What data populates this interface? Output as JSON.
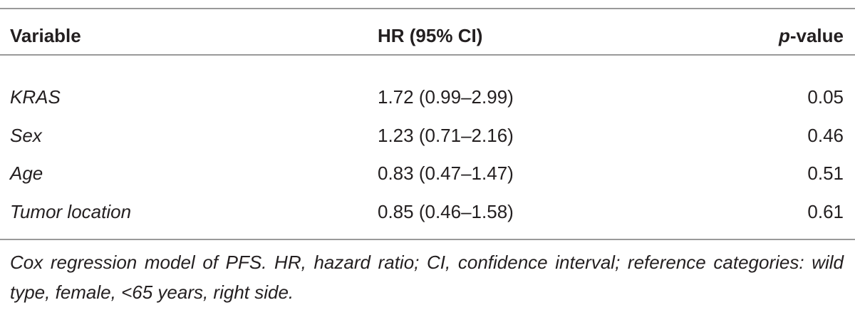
{
  "table": {
    "header": [
      "Variable",
      "HR (95% CI)",
      "p-value"
    ],
    "rows": [
      [
        "KRAS",
        "1.72 (0.99–2.99)",
        "0.05"
      ],
      [
        "Sex",
        "1.23 (0.71–2.16)",
        "0.46"
      ],
      [
        "Age",
        "0.83 (0.47–1.47)",
        "0.51"
      ],
      [
        "Tumor location",
        "0.85 (0.46–1.58)",
        "0.61"
      ]
    ],
    "footnote": "Cox regression model of PFS. HR, hazard ratio; CI, confidence interval; reference categories: wild type, female, <65 years, right side."
  }
}
